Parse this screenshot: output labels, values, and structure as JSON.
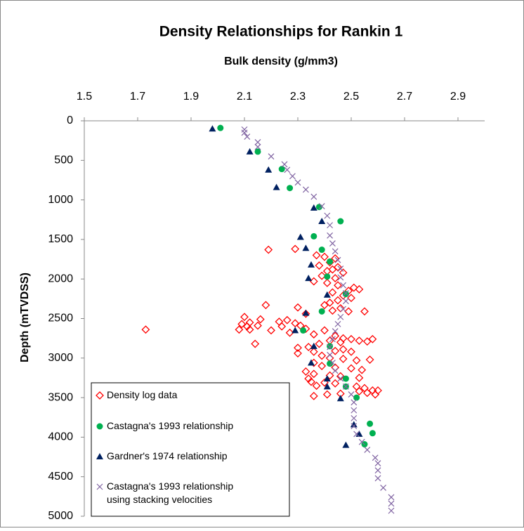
{
  "chart_data": {
    "type": "scatter",
    "title": "Density Relationships for Rankin 1",
    "x_label": "Bulk density (g/mm3)",
    "y_label": "Depth (mTVDSS)",
    "xlim": [
      1.5,
      3.0
    ],
    "xticks": [
      1.5,
      1.7,
      1.9,
      2.1,
      2.3,
      2.5,
      2.7,
      2.9
    ],
    "ylim": [
      0,
      5000
    ],
    "yticks": [
      0,
      500,
      1000,
      1500,
      2000,
      2500,
      3000,
      3500,
      4000,
      4500,
      5000
    ],
    "y_inverted": true,
    "x_axis_position": "top",
    "grid": false,
    "legend_position": "bottom-left",
    "series": [
      {
        "name": "Density log data",
        "color": "#ff0000",
        "marker": "diamond-open",
        "x": [
          2.19,
          2.29,
          2.37,
          2.4,
          2.44,
          2.42,
          2.38,
          2.45,
          2.43,
          2.41,
          2.47,
          2.39,
          2.44,
          2.36,
          2.41,
          2.45,
          2.51,
          2.53,
          2.49,
          2.43,
          2.47,
          2.5,
          2.45,
          2.42,
          2.4,
          2.18,
          2.46,
          2.43,
          2.49,
          2.3,
          2.55,
          2.33,
          2.1,
          2.16,
          2.23,
          2.26,
          2.12,
          2.09,
          2.11,
          2.15,
          2.24,
          2.29,
          2.31,
          2.08,
          2.12,
          2.2,
          1.73,
          2.27,
          2.33,
          2.36,
          2.4,
          2.44,
          2.47,
          2.5,
          2.53,
          2.56,
          2.58,
          2.42,
          2.46,
          2.38,
          2.34,
          2.3,
          2.3,
          2.36,
          2.44,
          2.47,
          2.5,
          2.14,
          2.39,
          2.42,
          2.47,
          2.52,
          2.57,
          2.36,
          2.39,
          2.44,
          2.5,
          2.54,
          2.33,
          2.36,
          2.42,
          2.46,
          2.53,
          2.34,
          2.35,
          2.4,
          2.44,
          2.37,
          2.52,
          2.55,
          2.58,
          2.56,
          2.53,
          2.46,
          2.41,
          2.36,
          2.6,
          2.59
        ],
        "y": [
          1630,
          1620,
          1700,
          1720,
          1740,
          1790,
          1830,
          1850,
          1880,
          1900,
          1920,
          1960,
          1990,
          2030,
          2050,
          2080,
          2110,
          2130,
          2150,
          2170,
          2210,
          2240,
          2270,
          2300,
          2330,
          2330,
          2370,
          2400,
          2410,
          2360,
          2410,
          2440,
          2480,
          2510,
          2540,
          2520,
          2550,
          2570,
          2600,
          2590,
          2600,
          2560,
          2590,
          2640,
          2640,
          2650,
          2640,
          2680,
          2630,
          2700,
          2650,
          2720,
          2750,
          2760,
          2780,
          2790,
          2760,
          2780,
          2800,
          2820,
          2860,
          2870,
          2940,
          2920,
          2910,
          2890,
          2920,
          2820,
          2970,
          3000,
          3010,
          3030,
          3020,
          3060,
          3100,
          3120,
          3130,
          3150,
          3170,
          3200,
          3220,
          3230,
          3250,
          3260,
          3300,
          3310,
          3320,
          3350,
          3360,
          3380,
          3410,
          3440,
          3420,
          3450,
          3460,
          3480,
          3410,
          3460
        ]
      },
      {
        "name": "Castagna's 1993 relationship",
        "color": "#00b050",
        "marker": "circle",
        "x": [
          2.01,
          2.15,
          2.24,
          2.27,
          2.38,
          2.46,
          2.36,
          2.39,
          2.42,
          2.41,
          2.48,
          2.39,
          2.32,
          2.42,
          2.42,
          2.48,
          2.48,
          2.52,
          2.57,
          2.58,
          2.55
        ],
        "y": [
          90,
          390,
          610,
          850,
          1090,
          1270,
          1460,
          1630,
          1780,
          1970,
          2190,
          2410,
          2650,
          2850,
          3070,
          3260,
          3360,
          3500,
          3830,
          3950,
          4090
        ]
      },
      {
        "name": "Gardner's 1974 relationship",
        "color": "#002060",
        "marker": "triangle",
        "x": [
          1.98,
          2.12,
          2.19,
          2.22,
          2.36,
          2.39,
          2.31,
          2.33,
          2.35,
          2.34,
          2.41,
          2.33,
          2.29,
          2.36,
          2.35,
          2.41,
          2.41,
          2.46,
          2.51,
          2.53,
          2.48
        ],
        "y": [
          100,
          390,
          620,
          840,
          1100,
          1270,
          1470,
          1610,
          1820,
          1990,
          2200,
          2430,
          2650,
          2850,
          3060,
          3260,
          3360,
          3510,
          3840,
          3960,
          4100
        ]
      },
      {
        "name": "Castagna's 1993 relationship using stacking velocities",
        "color": "#8064a2",
        "marker": "x",
        "x": [
          2.1,
          2.1,
          2.11,
          2.15,
          2.15,
          2.2,
          2.25,
          2.26,
          2.28,
          2.3,
          2.33,
          2.36,
          2.39,
          2.41,
          2.42,
          2.42,
          2.43,
          2.44,
          2.45,
          2.46,
          2.46,
          2.47,
          2.48,
          2.48,
          2.47,
          2.46,
          2.45,
          2.44,
          2.43,
          2.42,
          2.42,
          2.43,
          2.44,
          2.46,
          2.48,
          2.5,
          2.51,
          2.51,
          2.51,
          2.51,
          2.52,
          2.54,
          2.56,
          2.59,
          2.6,
          2.6,
          2.6,
          2.62,
          2.65,
          2.65,
          2.65
        ],
        "y": [
          110,
          150,
          200,
          270,
          330,
          450,
          550,
          620,
          700,
          780,
          870,
          960,
          1080,
          1200,
          1320,
          1450,
          1550,
          1650,
          1760,
          1870,
          1980,
          2080,
          2180,
          2280,
          2380,
          2480,
          2570,
          2660,
          2760,
          2860,
          2960,
          3060,
          3160,
          3260,
          3360,
          3460,
          3560,
          3660,
          3760,
          3860,
          3960,
          4060,
          4160,
          4260,
          4330,
          4420,
          4520,
          4640,
          4760,
          4840,
          4930
        ]
      }
    ]
  }
}
